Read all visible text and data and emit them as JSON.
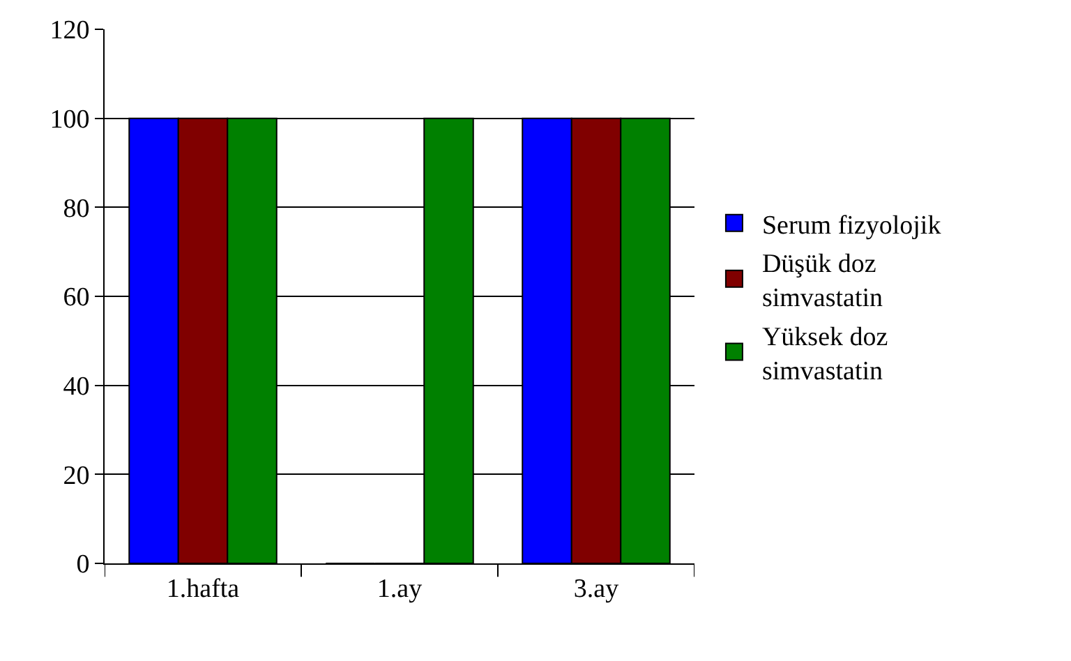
{
  "chart_data": {
    "type": "bar",
    "categories": [
      "1.hafta",
      "1.ay",
      "3.ay"
    ],
    "series": [
      {
        "name": "Serum fizyolojik",
        "color": "#0000ff",
        "values": [
          100,
          0,
          100
        ]
      },
      {
        "name": "Düşük doz simvastatin",
        "color": "#800000",
        "values": [
          100,
          0,
          100
        ]
      },
      {
        "name": "Yüksek doz simvastatin",
        "color": "#008000",
        "values": [
          100,
          100,
          100
        ]
      }
    ],
    "ylim": [
      0,
      120
    ],
    "yticks": [
      0,
      20,
      40,
      60,
      80,
      100,
      120
    ],
    "grid": "y",
    "legend": "right"
  }
}
